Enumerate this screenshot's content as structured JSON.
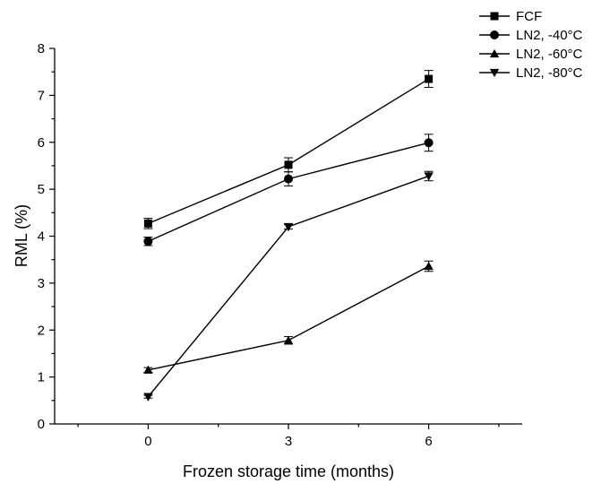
{
  "chart_data": {
    "type": "line",
    "title": "",
    "xlabel": "Frozen storage time (months)",
    "ylabel": "RML (%)",
    "x": [
      0,
      3,
      6
    ],
    "xticks": [
      "0",
      "3",
      "6"
    ],
    "xlim": [
      -2,
      8
    ],
    "ylim": [
      0,
      8
    ],
    "yticks": [
      "0",
      "1",
      "2",
      "3",
      "4",
      "5",
      "6",
      "7",
      "8"
    ],
    "grid": false,
    "legend_position": "top-right",
    "series": [
      {
        "name": "FCF",
        "marker": "square",
        "values": [
          4.27,
          5.52,
          7.35
        ],
        "errors": [
          0.11,
          0.15,
          0.18
        ]
      },
      {
        "name": "LN2, -40°C",
        "marker": "circle",
        "values": [
          3.89,
          5.22,
          5.99
        ],
        "errors": [
          0.09,
          0.15,
          0.18
        ]
      },
      {
        "name": "LN2, -60°C",
        "marker": "triangle-up",
        "values": [
          1.15,
          1.78,
          3.36
        ],
        "errors": [
          0.05,
          0.08,
          0.11
        ]
      },
      {
        "name": "LN2, -80°C",
        "marker": "triangle-down",
        "values": [
          0.58,
          4.2,
          5.28
        ],
        "errors": [
          0.03,
          0.05,
          0.1
        ]
      }
    ]
  }
}
